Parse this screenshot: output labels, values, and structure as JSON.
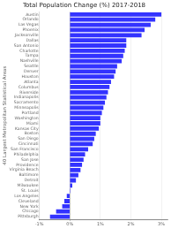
{
  "chart_data": {
    "type": "bar",
    "orientation": "horizontal",
    "title": "Total Population Change (%) 2017-2018",
    "ylabel": "40 Largest Metropolitan Statistical Areas",
    "categories": [
      "Austin",
      "Orlando",
      "Las Vegas",
      "Phoenix",
      "Jacksonville",
      "Dallas",
      "San Antonio",
      "Charlotte",
      "Tampa",
      "Nashville",
      "Seattle",
      "Denver",
      "Houston",
      "Atlanta",
      "Columbus",
      "Riverside",
      "Indianapolis",
      "Sacramento",
      "Minneapolis",
      "Portland",
      "Washington",
      "Miami",
      "Kansas City",
      "Boston",
      "San Diego",
      "Cincinnati",
      "San Francisco",
      "Philadelphia",
      "San Jose",
      "Providence",
      "Virginia Beach",
      "Baltimore",
      "Detroit",
      "Milwaukee",
      "St. Louis",
      "Los Angeles",
      "Cleveland",
      "New York",
      "Chicago",
      "Pittsburgh"
    ],
    "values": [
      3.0,
      2.8,
      2.65,
      2.45,
      2.35,
      1.85,
      1.85,
      1.8,
      1.75,
      1.7,
      1.55,
      1.5,
      1.45,
      1.35,
      1.3,
      1.25,
      1.2,
      1.15,
      1.1,
      1.05,
      1.0,
      1.0,
      0.95,
      0.85,
      0.8,
      0.75,
      0.6,
      0.5,
      0.45,
      0.4,
      0.35,
      0.28,
      0.2,
      0.08,
      0.02,
      -0.1,
      -0.18,
      -0.25,
      -0.45,
      -0.65
    ],
    "color": "#3333ff",
    "xlim": [
      -1.0,
      3.2
    ],
    "xticks": [
      {
        "value": -1.0,
        "label": "-1%"
      },
      {
        "value": 0.0,
        "label": "0%"
      },
      {
        "value": 1.0,
        "label": "1%"
      },
      {
        "value": 2.0,
        "label": "2%"
      },
      {
        "value": 3.0,
        "label": "3%"
      }
    ],
    "grid": true
  }
}
